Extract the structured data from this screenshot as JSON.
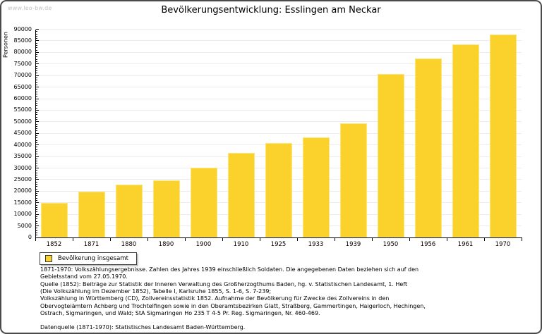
{
  "page": {
    "watermark": "www.leo-bw.de"
  },
  "chart_data": {
    "type": "bar",
    "title": "Bevölkerungsentwicklung: Esslingen am Neckar",
    "xlabel": "",
    "ylabel": "Personen",
    "ylim": [
      0,
      90000
    ],
    "ytick_step": 5000,
    "y_minor_tick_step": 1000,
    "grid": true,
    "bar_color": "#fbd22c",
    "bar_border_color": "#fde57d",
    "legend_position": "bottom-left",
    "legend_entries": [
      "Bevölkerung insgesamt"
    ],
    "categories": [
      "1852",
      "1871",
      "1880",
      "1890",
      "1900",
      "1910",
      "1925",
      "1933",
      "1939",
      "1950",
      "1956",
      "1961",
      "1970"
    ],
    "values": [
      15000,
      19900,
      22900,
      24600,
      30100,
      36700,
      40800,
      43300,
      49400,
      70800,
      77400,
      83300,
      87800
    ]
  },
  "footer": {
    "lines": [
      "1871-1970: Volkszählungsergebnisse. Zahlen des Jahres 1939 einschließlich Soldaten. Die angegebenen Daten beziehen sich auf den",
      "Gebietsstand vom 27.05.1970.",
      "Quelle (1852): Beiträge zur Statistik der Inneren Verwaltung des Großherzogthums Baden, hg. v. Statistischen Landesamt, 1. Heft",
      "(Die Volkszählung im Dezember 1852), Tabelle I, Karlsruhe 1855, S. 1-6, S. 7-239;",
      "Volkszählung in Württemberg (CD), Zollvereinsstatistik 1852. Aufnahme der Bevölkerung für Zwecke des Zollvereins in den",
      "Obervogteiämtern Achberg und Trochtelfingen sowie in den Oberamtsbezirken Glatt, Straßberg, Gammertingen, Haigerloch, Hechingen,",
      "Ostrach, Sigmaringen, und Wald; StA Sigmaringen Ho 235 T 4-5 Pr. Reg. Sigmaringen, Nr. 460-469."
    ],
    "datasource": "Datenquelle (1871-1970): Statistisches Landesamt Baden-Württemberg."
  }
}
